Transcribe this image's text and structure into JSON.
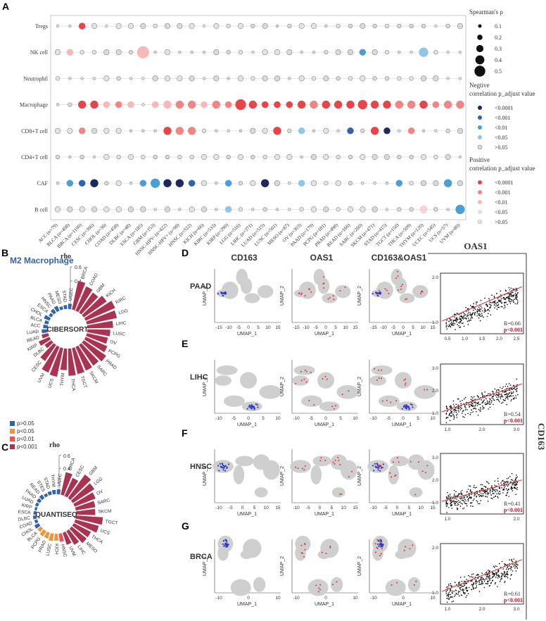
{
  "panels": {
    "A": "A",
    "B": "B",
    "C": "C",
    "D": "D",
    "E": "E",
    "F": "F",
    "G": "G"
  },
  "panelA": {
    "rows": [
      "Tregs",
      "NK cell",
      "Neutrophil",
      "Macrophage",
      "CD8+T cell",
      "CD4+T cell",
      "CAF",
      "B cell"
    ],
    "cancers": [
      "ACC (n=79)",
      "BLCA (n=408)",
      "BRCA (n=1100)",
      "CESC (n=306)",
      "CHOL (n=36)",
      "COAD (n=458)",
      "DLBC (n=48)",
      "ESCA (n=185)",
      "GBM (n=153)",
      "HNSC-HPV- (n=422)",
      "HNSC-HPV+ (n=98)",
      "HNSC (n=522)",
      "KICH (n=66)",
      "KIRC (n=533)",
      "KIRP (n=290)",
      "LGG (n=516)",
      "LIHC (n=371)",
      "LUAD (n=515)",
      "LUSC (n=501)",
      "MESO (n=87)",
      "OV (n=303)",
      "PAAD (n=179)",
      "PCPG (n=181)",
      "PRAD (n=498)",
      "READ (n=166)",
      "SARC (n=260)",
      "SKCM (n=471)",
      "STAD (n=415)",
      "TGCT (n=150)",
      "THCA (n=509)",
      "THYM (n=120)",
      "UCEC (n=545)",
      "UCS (n=57)",
      "UVM (n=80)"
    ],
    "legend": {
      "size_title": "Spearman's ρ",
      "size_items": [
        "0.1",
        "0.2",
        "0.3",
        "0.4",
        "0.5"
      ],
      "neg_title_1": "Negtive",
      "neg_title_2": "correlation  p_adjust value",
      "neg_items": [
        "<0.0001",
        "<0.001",
        "<0.01",
        "<0.05",
        ">0.05"
      ],
      "pos_title_1": "Positive",
      "pos_title_2": "correlation  p_adjust value",
      "pos_items": [
        "<0.0001",
        "<0.001",
        "<0.01",
        "<0.05",
        ">0.05"
      ]
    },
    "colors": {
      "neg": [
        "#1a2a5e",
        "#2e64ad",
        "#4a9fd8",
        "#8ec6ea",
        "#d9d9d9"
      ],
      "pos": [
        "#e8454a",
        "#f08585",
        "#f6b8b8",
        "#f7d5d5",
        "#e3e3e3"
      ]
    }
  },
  "panelB": {
    "title": "M2 Macrophage",
    "center": "CIBERSORT",
    "rho_label": "rho",
    "ticks": [
      "0.6",
      "0.4",
      "0.2",
      "0"
    ],
    "labels": [
      "UCEC",
      "BRCA",
      "COAD",
      "GBM",
      "KICH",
      "KIRC",
      "LGG",
      "LIHC",
      "LUSC",
      "OV",
      "PCPG",
      "PRAD",
      "SARC",
      "SKCM",
      "TGCT",
      "THCA",
      "THYM",
      "UCS",
      "UVM",
      "CESC",
      "DLBC",
      "KIRP",
      "READ",
      "LUAD",
      "ACC",
      "BLCA",
      "CHOL",
      "ESCA",
      "HNSC",
      "PAAD",
      "MESO",
      "STAD"
    ],
    "rho": [
      0.08,
      0.42,
      0.38,
      0.35,
      0.4,
      0.46,
      0.44,
      0.37,
      0.33,
      0.31,
      0.34,
      0.39,
      0.36,
      0.37,
      0.38,
      0.39,
      0.31,
      0.42,
      0.4,
      0.28,
      0.12,
      0.17,
      0.1,
      0.09,
      0.07,
      0.06,
      0.09,
      0.05,
      0.07,
      0.08,
      0.05,
      0.06
    ],
    "cat": [
      0,
      3,
      3,
      3,
      3,
      3,
      3,
      3,
      3,
      3,
      3,
      3,
      3,
      3,
      3,
      3,
      3,
      3,
      3,
      3,
      3,
      3,
      3,
      0,
      0,
      0,
      0,
      0,
      0,
      0,
      0,
      0
    ]
  },
  "panelC": {
    "center": "QUANTISEQ",
    "rho_label": "rho",
    "ticks": [
      "0.6",
      "0.4",
      "0.2",
      "0"
    ],
    "labels": [
      "UCEC",
      "BRCA",
      "CESC",
      "GBM",
      "LGG",
      "OV",
      "SARC",
      "SKCM",
      "TGCT",
      "UCS",
      "THCA",
      "MESO",
      "LIHC",
      "UVM",
      "HNSC",
      "KICH",
      "LUSC",
      "PRAD",
      "PCPG",
      "BLCA",
      "CHOL",
      "COAD",
      "DLBC",
      "ESCA",
      "KIRP",
      "LUAD",
      "PAAD",
      "READ",
      "STES",
      "STAD",
      "THYM"
    ],
    "rho": [
      0.08,
      0.36,
      0.31,
      0.45,
      0.4,
      0.35,
      0.31,
      0.3,
      0.42,
      0.38,
      0.3,
      0.3,
      0.25,
      0.2,
      0.13,
      0.11,
      0.12,
      0.1,
      0.1,
      0.07,
      0.08,
      0.05,
      0.06,
      0.05,
      0.04,
      0.05,
      0.06,
      0.07,
      0.05,
      0.06,
      0.07
    ],
    "cat": [
      0,
      3,
      3,
      3,
      3,
      3,
      3,
      3,
      3,
      3,
      3,
      3,
      3,
      3,
      2,
      1,
      1,
      1,
      1,
      1,
      0,
      0,
      0,
      0,
      0,
      0,
      0,
      0,
      0,
      0,
      0
    ]
  },
  "legendBC": {
    "items": [
      "p>0.05",
      "p<0.05",
      "p<0.01",
      "p<0.001"
    ],
    "colors": [
      "#3563a8",
      "#e8973c",
      "#e0585e",
      "#a93351"
    ]
  },
  "panelD_G": {
    "col_titles": [
      "CD163",
      "OAS1",
      "CD163&OAS1"
    ],
    "scatter_title": "OAS1",
    "side_label": "CD163",
    "umap_x": "UMAP_1",
    "umap_y": "UMAP_2",
    "rows": [
      {
        "label": "PAAD",
        "color": "#c44e5e",
        "r": "R=0.66",
        "p": "p<0.001",
        "xt": [
          "-15",
          "-10",
          "-5",
          "0",
          "5",
          "10",
          "15"
        ],
        "st": [
          "0.5",
          "1.0",
          "1.5",
          "2.0",
          "2.5"
        ],
        "sy": [
          "1.0",
          "2.0"
        ]
      },
      {
        "label": "LIHC",
        "color": "#e06a6a",
        "r": "R=0.54",
        "p": "p<0.001",
        "xt": [
          "-10",
          "-5",
          "0",
          "5",
          "10"
        ],
        "st": [
          "1.0",
          "2.0",
          "3.0"
        ],
        "sy": [
          "1.0",
          "2.0",
          "3.0"
        ]
      },
      {
        "label": "HNSC",
        "color": "#e8973c",
        "r": "R=0.41",
        "p": "p<0.001",
        "xt": [
          "-10",
          "-5",
          "0",
          "5",
          "10",
          "15"
        ],
        "st": [
          "1.0",
          "2.0"
        ],
        "sy": [
          "1.0",
          "2.0",
          "3.0"
        ]
      },
      {
        "label": "BRCA",
        "color": "#3563a8",
        "r": "R=0.61",
        "p": "p<0.001",
        "xt": [
          "-10",
          "0",
          "10"
        ],
        "st": [
          "1.0",
          "2.0",
          "3.0"
        ],
        "sy": [
          "1.0",
          "2.0"
        ]
      }
    ]
  }
}
